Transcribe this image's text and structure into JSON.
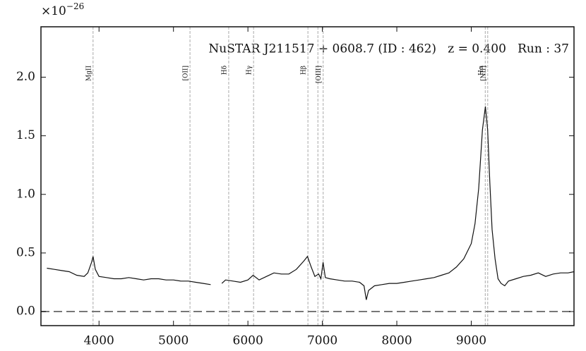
{
  "chart_data": {
    "type": "line",
    "annotation": "NuSTAR J211517 + 0608.7 (ID : 462)   z = 0.400   Run : 37",
    "y_multiplier": {
      "base": "×10",
      "exponent": "−26"
    },
    "x": [
      3300,
      3400,
      3500,
      3600,
      3700,
      3800,
      3850,
      3900,
      3920,
      3950,
      4000,
      4100,
      4200,
      4300,
      4400,
      4500,
      4600,
      4700,
      4800,
      4900,
      5000,
      5100,
      5200,
      5300,
      5400,
      5500,
      5550,
      5650,
      5700,
      5800,
      5900,
      6000,
      6070,
      6150,
      6250,
      6350,
      6450,
      6550,
      6650,
      6750,
      6800,
      6850,
      6900,
      6950,
      6980,
      7010,
      7040,
      7100,
      7200,
      7300,
      7400,
      7500,
      7560,
      7590,
      7620,
      7700,
      7800,
      7900,
      8000,
      8100,
      8200,
      8300,
      8400,
      8500,
      8600,
      8700,
      8800,
      8900,
      9000,
      9050,
      9100,
      9150,
      9190,
      9220,
      9250,
      9280,
      9320,
      9360,
      9400,
      9450,
      9500,
      9600,
      9700,
      9800,
      9900,
      10000,
      10100,
      10200,
      10300,
      10380
    ],
    "series": [
      {
        "color": "#111111",
        "values": [
          0.37,
          0.36,
          0.35,
          0.34,
          0.31,
          0.3,
          0.33,
          0.42,
          0.47,
          0.36,
          0.3,
          0.29,
          0.28,
          0.28,
          0.29,
          0.28,
          0.27,
          0.28,
          0.28,
          0.27,
          0.27,
          0.26,
          0.26,
          0.25,
          0.24,
          0.23,
          null,
          0.24,
          0.27,
          0.26,
          0.25,
          0.27,
          0.31,
          0.27,
          0.3,
          0.33,
          0.32,
          0.32,
          0.36,
          0.43,
          0.47,
          0.38,
          0.3,
          0.32,
          0.28,
          0.42,
          0.29,
          0.28,
          0.27,
          0.26,
          0.26,
          0.25,
          0.22,
          0.1,
          0.18,
          0.22,
          0.23,
          0.24,
          0.24,
          0.25,
          0.26,
          0.27,
          0.28,
          0.29,
          0.31,
          0.33,
          0.38,
          0.45,
          0.58,
          0.75,
          1.05,
          1.55,
          1.75,
          1.55,
          1.1,
          0.7,
          0.45,
          0.28,
          0.24,
          0.22,
          0.26,
          0.28,
          0.3,
          0.31,
          0.33,
          0.3,
          0.32,
          0.33,
          0.33,
          0.34
        ]
      }
    ],
    "emission_lines": {
      "x": [
        3920,
        5222,
        5742,
        6076,
        6806,
        6940,
        7011,
        9188,
        9221
      ],
      "labels": [
        "MgII",
        "[OII]",
        "Hδ",
        "Hγ",
        "Hβ",
        null,
        "[OIII]",
        "Hα",
        "[NII]"
      ]
    },
    "reference_line": 0,
    "xlim": [
      3220,
      10380
    ],
    "ylim": [
      -0.12,
      2.43
    ],
    "xticks": [
      4000,
      5000,
      6000,
      7000,
      8000,
      9000
    ],
    "yticks": [
      {
        "value": 0,
        "label": "0.0"
      },
      0.5,
      {
        "value": 1,
        "label": "1.0"
      },
      1.5,
      {
        "value": 2,
        "label": "2.0"
      }
    ]
  }
}
